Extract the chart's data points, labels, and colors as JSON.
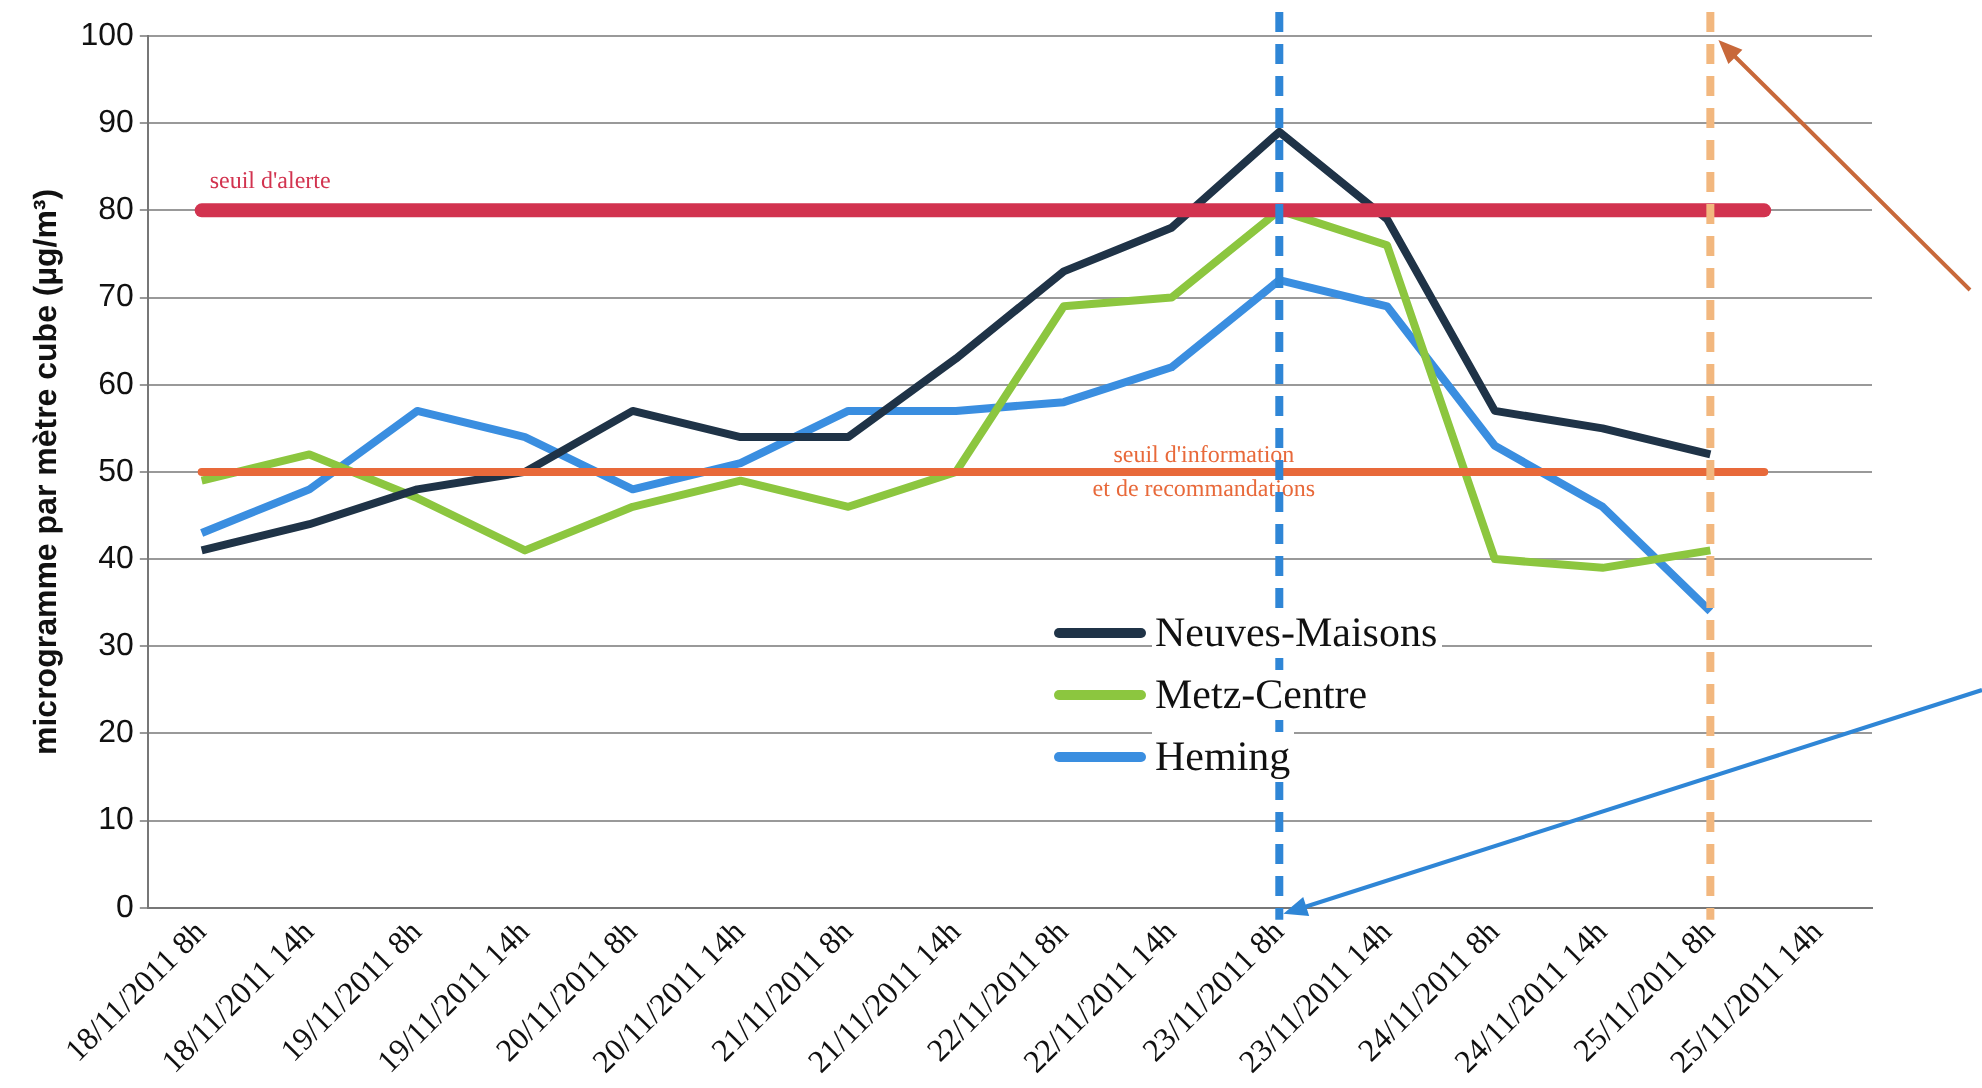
{
  "chart_data": {
    "type": "line",
    "ylabel": "microgramme par mètre cube (µg/m³)",
    "categories": [
      "18/11/2011 8h",
      "18/11/2011 14h",
      "19/11/2011 8h",
      "19/11/2011 14h",
      "20/11/2011 8h",
      "20/11/2011 14h",
      "21/11/2011 8h",
      "21/11/2011 14h",
      "22/11/2011 8h",
      "22/11/2011 14h",
      "23/11/2011 8h",
      "23/11/2011 14h",
      "24/11/2011 8h",
      "24/11/2011 14h",
      "25/11/2011 8h",
      "25/11/2011 14h"
    ],
    "series": [
      {
        "name": "Neuves-Maisons",
        "color": "#1f3347",
        "values": [
          41,
          44,
          48,
          50,
          57,
          54,
          54,
          63,
          73,
          78,
          89,
          79,
          57,
          55,
          52,
          null
        ]
      },
      {
        "name": "Metz-Centre",
        "color": "#8cc63f",
        "values": [
          49,
          52,
          47,
          41,
          46,
          49,
          46,
          50,
          69,
          70,
          80,
          76,
          40,
          39,
          41,
          null
        ]
      },
      {
        "name": "Heming",
        "color": "#3a8ee0",
        "values": [
          43,
          48,
          57,
          54,
          48,
          51,
          57,
          57,
          58,
          62,
          72,
          69,
          53,
          46,
          34,
          null
        ]
      }
    ],
    "ylim": [
      0,
      100
    ],
    "yticks": [
      0,
      10,
      20,
      30,
      40,
      50,
      60,
      70,
      80,
      90,
      100
    ],
    "grid": "y",
    "legend": "bottom",
    "marker": "none",
    "line_style": "solid",
    "ref_lines": [
      {
        "axis": "y",
        "value": 80,
        "label": "seuil d'alerte",
        "color": "#d2334f"
      },
      {
        "axis": "y",
        "value": 50,
        "label": "seuil d'information\net de recommandations",
        "color": "#e8693a"
      },
      {
        "axis": "x",
        "value": "23/11/2011 8h",
        "color": "#2f86d6",
        "line_style": "dashed"
      },
      {
        "axis": "x",
        "value": "25/11/2011 8h",
        "color": "#f2b77e",
        "line_style": "dashed"
      }
    ]
  }
}
